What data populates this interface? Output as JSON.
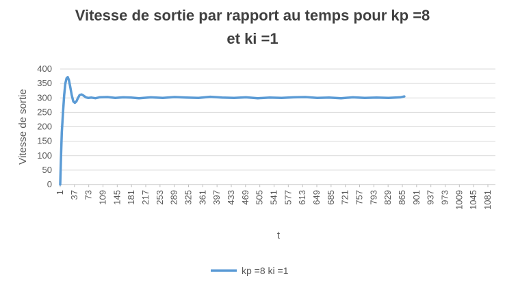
{
  "chart_data": {
    "type": "line",
    "title_line1": "Vitesse de sortie par rapport au temps pour kp =8",
    "title_line2": "et ki =1",
    "xlabel": "t",
    "ylabel": "Vitesse de sortie",
    "ylim": [
      0,
      400
    ],
    "yticks": [
      0,
      50,
      100,
      150,
      200,
      250,
      300,
      350,
      400
    ],
    "xlim": [
      1,
      1100
    ],
    "xticks": [
      1,
      37,
      73,
      109,
      145,
      181,
      217,
      253,
      289,
      325,
      361,
      397,
      433,
      469,
      505,
      541,
      577,
      613,
      649,
      685,
      721,
      757,
      793,
      829,
      865,
      901,
      937,
      973,
      1009,
      1045,
      1081
    ],
    "grid": "horizontal",
    "legend_position": "bottom",
    "colors": {
      "series": "#5b9bd5",
      "grid": "#d9d9d9",
      "axis": "#bfbfbf",
      "text": "#595959",
      "title": "#404040"
    },
    "series": [
      {
        "name": "kp =8 ki =1",
        "x": [
          1,
          3,
          5,
          8,
          11,
          14,
          17,
          20,
          23,
          26,
          30,
          34,
          38,
          42,
          46,
          50,
          55,
          60,
          66,
          72,
          80,
          90,
          100,
          120,
          140,
          160,
          180,
          200,
          230,
          260,
          290,
          320,
          350,
          380,
          410,
          440,
          470,
          500,
          530,
          560,
          590,
          620,
          650,
          680,
          710,
          740,
          770,
          800,
          830,
          860,
          870
        ],
        "y": [
          0,
          100,
          180,
          250,
          310,
          350,
          368,
          372,
          362,
          340,
          310,
          288,
          283,
          288,
          300,
          310,
          312,
          308,
          302,
          300,
          301,
          299,
          302,
          303,
          300,
          302,
          301,
          299,
          302,
          300,
          303,
          301,
          300,
          304,
          301,
          300,
          302,
          299,
          301,
          300,
          302,
          303,
          300,
          301,
          299,
          302,
          300,
          301,
          300,
          302,
          305
        ]
      }
    ]
  }
}
